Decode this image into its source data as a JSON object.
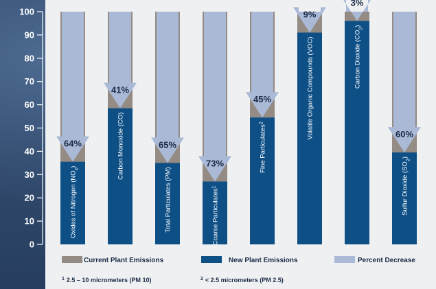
{
  "chart_data": {
    "type": "bar",
    "categories": [
      "Oxides of Nitrogen (NOx)",
      "Carbon Monoxide (CO)",
      "Total Particulates (PM)",
      "Coarse Particulates¹",
      "Fine Particulates²",
      "Volatile Organic Compounds (VOC)",
      "Carbon Dioxide (CO2)",
      "Sulfur Dioxide (SO2)"
    ],
    "category_labels": [
      {
        "text": "Oxides of Nitrogen (NO",
        "sub": "x",
        "tail": ")"
      },
      {
        "text": "Carbon Monoxide (CO)",
        "sub": "",
        "tail": ""
      },
      {
        "text": "Total Particulates (PM)",
        "sub": "",
        "tail": ""
      },
      {
        "text": "Coarse Particulates",
        "sup": "1",
        "tail": ""
      },
      {
        "text": "Fine Particulates",
        "sup": "2",
        "tail": ""
      },
      {
        "text": "Volatile Organic Compounds (VOC)",
        "sub": "",
        "tail": ""
      },
      {
        "text": "Carbon Dioxide (CO",
        "sub": "2",
        "tail": ")"
      },
      {
        "text": "Sulfur Dioxide (SO",
        "sub": "2",
        "tail": ")"
      }
    ],
    "series": [
      {
        "name": "Current  Plant Emissions",
        "color": "#948b84",
        "values": [
          100,
          100,
          100,
          100,
          100,
          100,
          100,
          100
        ]
      },
      {
        "name": "New Plant Emissions",
        "color": "#0e4f86",
        "values": [
          35.5,
          58.5,
          35,
          27,
          54.5,
          91,
          96,
          39.5
        ]
      },
      {
        "name": "Percent Decrease",
        "color": "#a9b9d6",
        "values": [
          64,
          41,
          65,
          73,
          45,
          9,
          3,
          60
        ]
      }
    ],
    "percent_labels": [
      "64%",
      "41%",
      "65%",
      "73%",
      "45%",
      "9%",
      "3%",
      "60%"
    ],
    "y_ticks": [
      "0",
      "10",
      "20",
      "30",
      "40",
      "50",
      "60",
      "70",
      "80",
      "90",
      "100"
    ],
    "ylim": [
      0,
      100
    ],
    "legend_position": "bottom"
  },
  "footnotes": [
    {
      "mark": "1",
      "text": "2.5 – 10 micrometers (PM 10)"
    },
    {
      "mark": "2",
      "text": "< 2.5 micrometers (PM 2.5)"
    }
  ]
}
